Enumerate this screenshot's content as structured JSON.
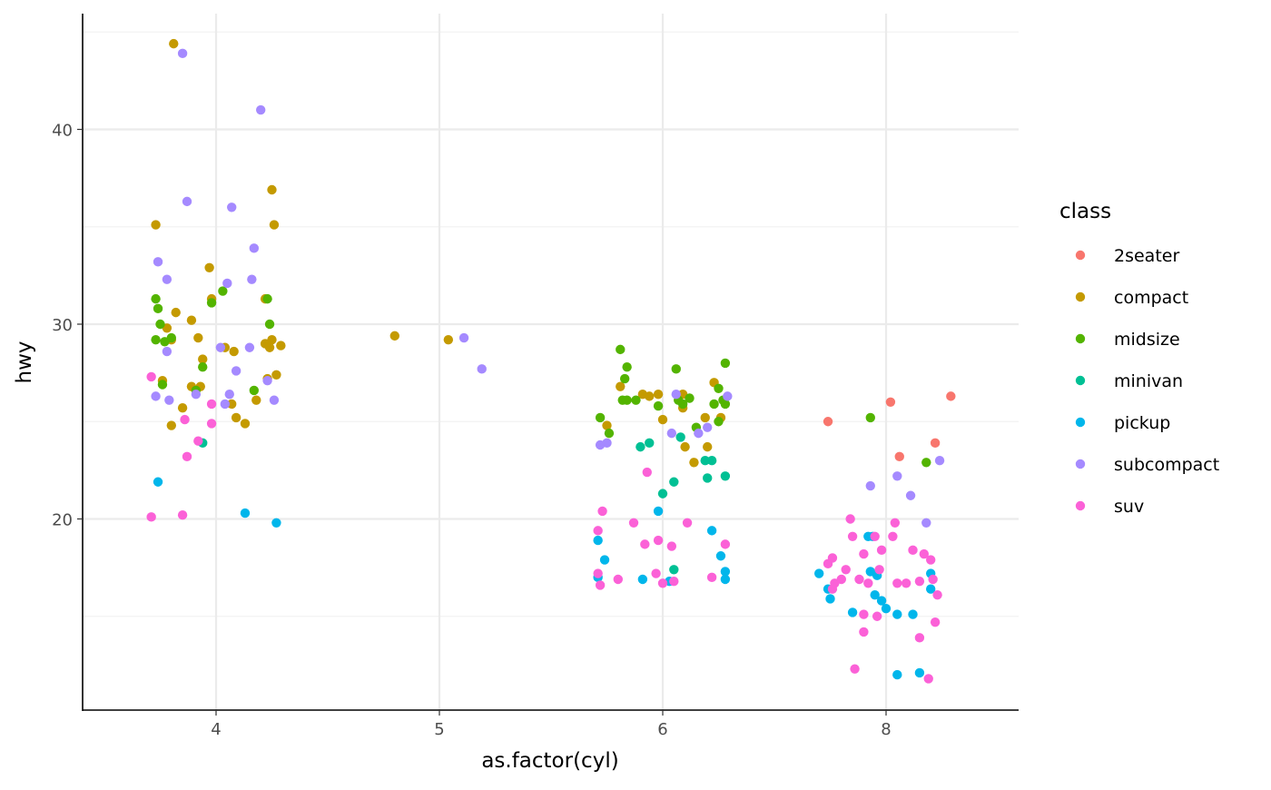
{
  "chart_data": {
    "type": "scatter",
    "title": "",
    "xlabel": "as.factor(cyl)",
    "ylabel": "hwy",
    "x_categories": [
      "4",
      "5",
      "6",
      "8"
    ],
    "x_note": "x values are jittered category positions (1=4, 2=5, 3=6, 4=8)",
    "xlim": [
      0.4,
      4.55
    ],
    "ylim": [
      10.5,
      45.8
    ],
    "y_ticks": [
      20,
      30,
      40
    ],
    "y_minor": [
      15,
      25,
      35,
      45
    ],
    "grid": true,
    "legend": {
      "title": "class",
      "position": "right",
      "entries": [
        "2seater",
        "compact",
        "midsize",
        "minivan",
        "pickup",
        "subcompact",
        "suv"
      ]
    },
    "colors": {
      "2seater": "#F8766D",
      "compact": "#C49A00",
      "midsize": "#53B400",
      "minivan": "#00C094",
      "pickup": "#00B6EB",
      "subcompact": "#A58AFF",
      "suv": "#FB61D7"
    },
    "series": [
      {
        "name": "2seater",
        "points": [
          [
            3.74,
            25.0
          ],
          [
            4.02,
            26.0
          ],
          [
            4.06,
            23.2
          ],
          [
            4.22,
            23.9
          ],
          [
            4.29,
            26.3
          ]
        ]
      },
      {
        "name": "compact",
        "points": [
          [
            0.81,
            44.4
          ],
          [
            0.73,
            35.1
          ],
          [
            1.25,
            36.9
          ],
          [
            1.26,
            35.1
          ],
          [
            0.97,
            32.9
          ],
          [
            1.22,
            31.3
          ],
          [
            0.78,
            29.8
          ],
          [
            0.82,
            30.6
          ],
          [
            0.89,
            30.2
          ],
          [
            0.8,
            29.2
          ],
          [
            0.92,
            29.3
          ],
          [
            0.98,
            31.3
          ],
          [
            1.04,
            28.8
          ],
          [
            1.08,
            28.6
          ],
          [
            0.94,
            28.2
          ],
          [
            0.89,
            26.8
          ],
          [
            0.93,
            26.8
          ],
          [
            1.07,
            25.9
          ],
          [
            1.18,
            26.1
          ],
          [
            0.85,
            25.7
          ],
          [
            0.8,
            24.8
          ],
          [
            1.09,
            25.2
          ],
          [
            1.13,
            24.9
          ],
          [
            1.23,
            27.2
          ],
          [
            1.27,
            27.4
          ],
          [
            1.24,
            28.8
          ],
          [
            1.29,
            28.9
          ],
          [
            1.25,
            29.2
          ],
          [
            1.22,
            29.0
          ],
          [
            0.76,
            27.1
          ],
          [
            1.8,
            29.4
          ],
          [
            2.04,
            29.2
          ],
          [
            3.09,
            26.4
          ],
          [
            2.75,
            24.8
          ],
          [
            2.81,
            26.8
          ],
          [
            2.91,
            26.4
          ],
          [
            2.94,
            26.3
          ],
          [
            2.98,
            26.4
          ],
          [
            3.0,
            25.1
          ],
          [
            3.09,
            25.7
          ],
          [
            3.1,
            23.7
          ],
          [
            3.14,
            22.9
          ],
          [
            3.19,
            25.2
          ],
          [
            3.2,
            23.7
          ],
          [
            3.23,
            27.0
          ],
          [
            3.26,
            25.2
          ]
        ]
      },
      {
        "name": "midsize",
        "points": [
          [
            0.73,
            31.3
          ],
          [
            0.74,
            30.8
          ],
          [
            0.75,
            30.0
          ],
          [
            0.73,
            29.2
          ],
          [
            0.77,
            29.1
          ],
          [
            0.8,
            29.3
          ],
          [
            0.76,
            26.9
          ],
          [
            0.91,
            26.6
          ],
          [
            0.94,
            27.8
          ],
          [
            0.98,
            31.1
          ],
          [
            1.03,
            31.7
          ],
          [
            1.17,
            26.6
          ],
          [
            1.23,
            31.3
          ],
          [
            1.24,
            30.0
          ],
          [
            2.81,
            28.7
          ],
          [
            2.83,
            27.2
          ],
          [
            2.84,
            27.8
          ],
          [
            2.82,
            26.1
          ],
          [
            2.84,
            26.1
          ],
          [
            2.88,
            26.1
          ],
          [
            2.98,
            25.8
          ],
          [
            2.72,
            25.2
          ],
          [
            2.76,
            24.4
          ],
          [
            3.06,
            27.7
          ],
          [
            3.07,
            26.1
          ],
          [
            3.09,
            25.9
          ],
          [
            3.12,
            26.2
          ],
          [
            3.15,
            24.7
          ],
          [
            3.23,
            25.9
          ],
          [
            3.25,
            26.7
          ],
          [
            3.27,
            26.1
          ],
          [
            3.25,
            25.0
          ],
          [
            3.28,
            28.0
          ],
          [
            3.28,
            25.9
          ],
          [
            3.93,
            25.2
          ],
          [
            4.18,
            22.9
          ]
        ]
      },
      {
        "name": "minivan",
        "points": [
          [
            0.94,
            23.9
          ],
          [
            2.9,
            23.7
          ],
          [
            2.94,
            23.9
          ],
          [
            3.08,
            24.2
          ],
          [
            3.05,
            21.9
          ],
          [
            3.0,
            21.3
          ],
          [
            3.19,
            23.0
          ],
          [
            3.22,
            23.0
          ],
          [
            3.2,
            22.1
          ],
          [
            3.28,
            22.2
          ],
          [
            3.05,
            17.4
          ]
        ]
      },
      {
        "name": "pickup",
        "points": [
          [
            0.74,
            21.9
          ],
          [
            1.13,
            20.3
          ],
          [
            1.27,
            19.8
          ],
          [
            2.71,
            18.9
          ],
          [
            2.74,
            17.9
          ],
          [
            2.98,
            20.4
          ],
          [
            3.22,
            19.4
          ],
          [
            3.26,
            18.1
          ],
          [
            3.28,
            17.3
          ],
          [
            3.28,
            16.9
          ],
          [
            2.91,
            16.9
          ],
          [
            3.03,
            16.8
          ],
          [
            2.71,
            17.0
          ],
          [
            3.7,
            17.2
          ],
          [
            3.74,
            16.4
          ],
          [
            3.75,
            15.9
          ],
          [
            3.85,
            15.2
          ],
          [
            3.92,
            19.1
          ],
          [
            3.94,
            19.1
          ],
          [
            3.93,
            17.3
          ],
          [
            3.96,
            17.1
          ],
          [
            3.95,
            16.1
          ],
          [
            3.98,
            15.8
          ],
          [
            4.0,
            15.4
          ],
          [
            4.05,
            15.1
          ],
          [
            4.12,
            15.1
          ],
          [
            4.2,
            16.4
          ],
          [
            4.2,
            17.2
          ],
          [
            4.05,
            12.0
          ],
          [
            4.15,
            12.1
          ]
        ]
      },
      {
        "name": "subcompact",
        "points": [
          [
            0.85,
            43.9
          ],
          [
            1.2,
            41.0
          ],
          [
            0.87,
            36.3
          ],
          [
            1.07,
            36.0
          ],
          [
            1.17,
            33.9
          ],
          [
            0.74,
            33.2
          ],
          [
            0.78,
            32.3
          ],
          [
            1.05,
            32.1
          ],
          [
            1.16,
            32.3
          ],
          [
            0.78,
            28.6
          ],
          [
            1.09,
            27.6
          ],
          [
            1.15,
            28.8
          ],
          [
            1.02,
            28.8
          ],
          [
            0.73,
            26.3
          ],
          [
            0.79,
            26.1
          ],
          [
            0.91,
            26.4
          ],
          [
            1.06,
            26.4
          ],
          [
            1.04,
            25.9
          ],
          [
            1.23,
            27.1
          ],
          [
            1.26,
            26.1
          ],
          [
            2.11,
            29.3
          ],
          [
            2.19,
            27.7
          ],
          [
            2.72,
            23.8
          ],
          [
            2.75,
            23.9
          ],
          [
            3.04,
            24.4
          ],
          [
            3.06,
            26.4
          ],
          [
            3.16,
            24.4
          ],
          [
            3.2,
            24.7
          ],
          [
            3.29,
            26.3
          ],
          [
            3.93,
            21.7
          ],
          [
            4.05,
            22.2
          ],
          [
            4.11,
            21.2
          ],
          [
            4.18,
            19.8
          ],
          [
            4.24,
            23.0
          ]
        ]
      },
      {
        "name": "suv",
        "points": [
          [
            0.71,
            27.3
          ],
          [
            0.71,
            20.1
          ],
          [
            0.85,
            20.2
          ],
          [
            0.86,
            25.1
          ],
          [
            0.87,
            23.2
          ],
          [
            0.92,
            24.0
          ],
          [
            0.98,
            25.9
          ],
          [
            0.98,
            24.9
          ],
          [
            2.93,
            22.4
          ],
          [
            2.73,
            20.4
          ],
          [
            2.71,
            19.4
          ],
          [
            2.87,
            19.8
          ],
          [
            2.71,
            17.2
          ],
          [
            2.72,
            16.6
          ],
          [
            2.8,
            16.9
          ],
          [
            2.92,
            18.7
          ],
          [
            2.98,
            18.9
          ],
          [
            3.04,
            18.6
          ],
          [
            2.97,
            17.2
          ],
          [
            3.0,
            16.7
          ],
          [
            3.05,
            16.8
          ],
          [
            3.11,
            19.8
          ],
          [
            3.22,
            17.0
          ],
          [
            3.28,
            18.7
          ],
          [
            3.74,
            17.7
          ],
          [
            3.76,
            18.0
          ],
          [
            3.76,
            16.4
          ],
          [
            3.77,
            16.7
          ],
          [
            3.8,
            16.9
          ],
          [
            3.84,
            20.0
          ],
          [
            3.85,
            19.1
          ],
          [
            3.82,
            17.4
          ],
          [
            3.88,
            16.9
          ],
          [
            3.9,
            18.2
          ],
          [
            3.9,
            14.2
          ],
          [
            3.86,
            12.3
          ],
          [
            3.9,
            15.1
          ],
          [
            3.92,
            16.7
          ],
          [
            3.95,
            19.1
          ],
          [
            3.98,
            18.4
          ],
          [
            3.97,
            17.4
          ],
          [
            3.96,
            15.0
          ],
          [
            4.04,
            19.8
          ],
          [
            4.03,
            19.1
          ],
          [
            4.05,
            16.7
          ],
          [
            4.12,
            18.4
          ],
          [
            4.15,
            16.8
          ],
          [
            4.15,
            13.9
          ],
          [
            4.17,
            18.2
          ],
          [
            4.2,
            17.9
          ],
          [
            4.21,
            16.9
          ],
          [
            4.23,
            16.1
          ],
          [
            4.22,
            14.7
          ],
          [
            4.19,
            11.8
          ],
          [
            4.09,
            16.7
          ]
        ]
      }
    ]
  }
}
